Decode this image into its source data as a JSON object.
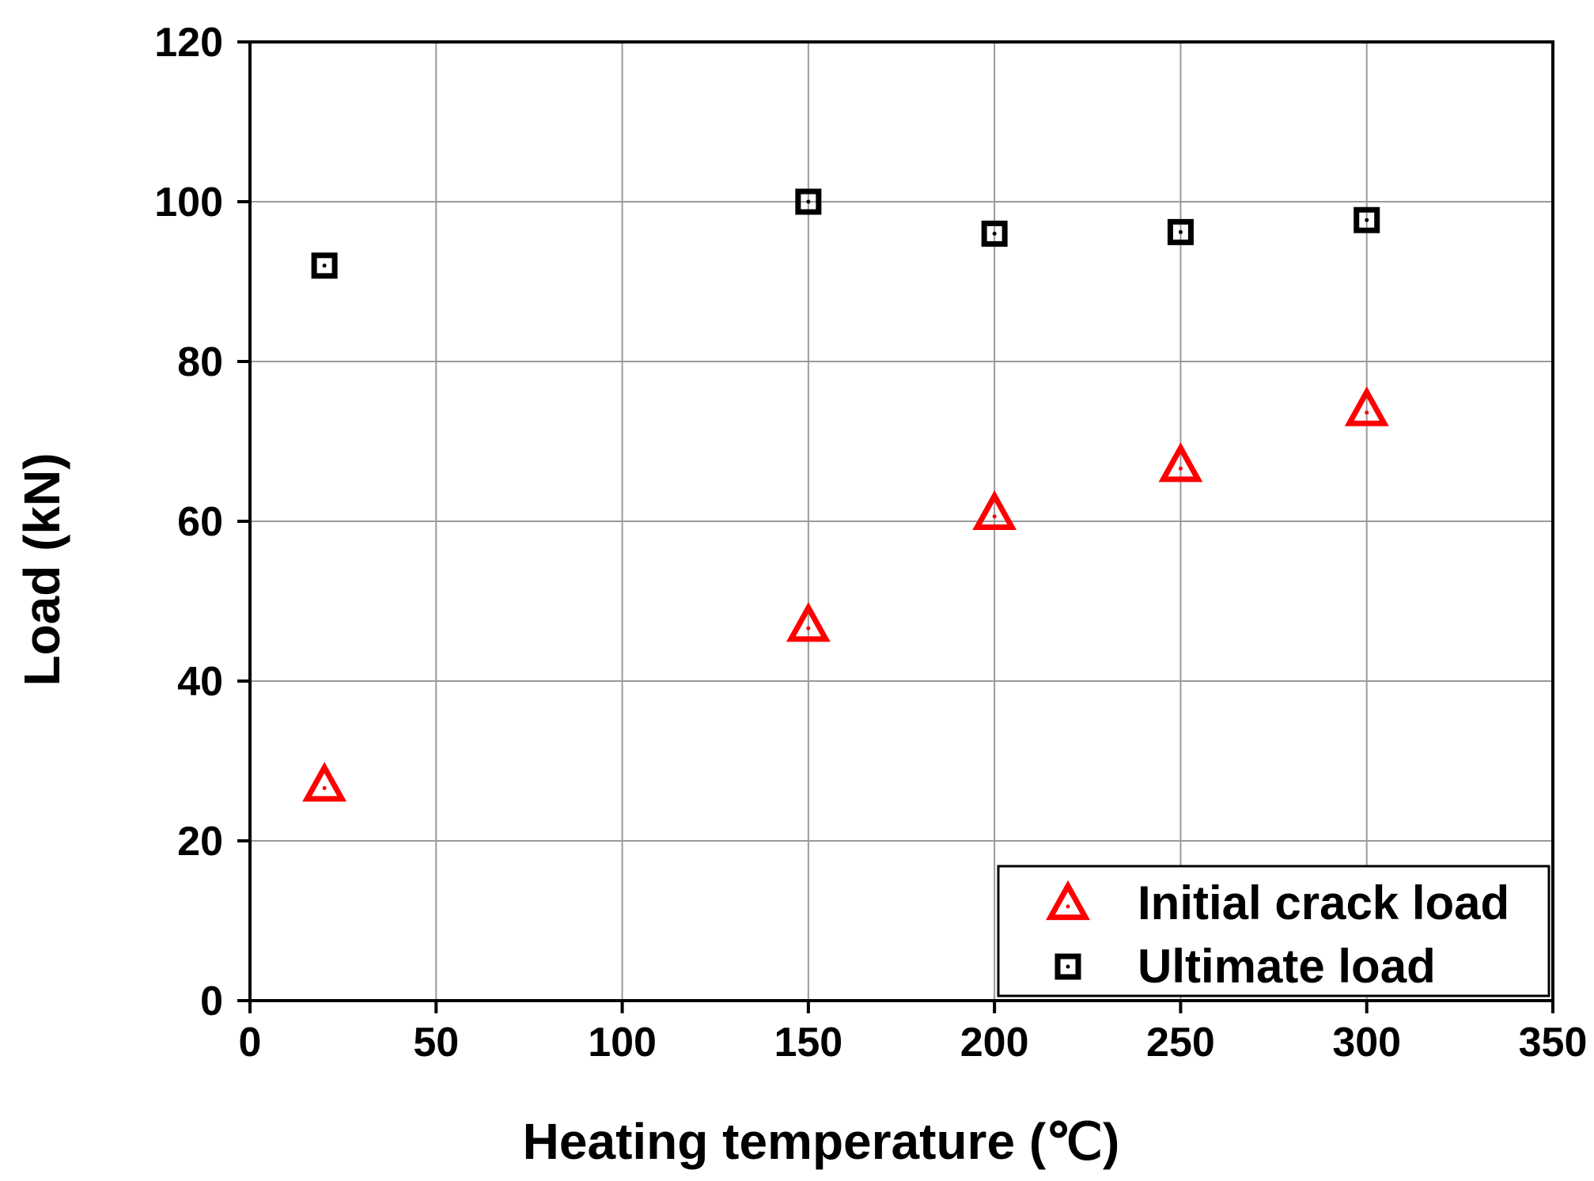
{
  "chart_data": {
    "type": "scatter",
    "title": "",
    "xlabel": "Heating temperature (℃)",
    "ylabel": "Load (kN)",
    "xlim": [
      0,
      350
    ],
    "ylim": [
      0,
      120
    ],
    "xticks": [
      "0",
      "50",
      "100",
      "150",
      "200",
      "250",
      "300",
      "350"
    ],
    "yticks": [
      "0",
      "20",
      "40",
      "60",
      "80",
      "100",
      "120"
    ],
    "grid": true,
    "legend_position": "bottom-right",
    "series": [
      {
        "name": "Initial crack load",
        "marker": "triangle",
        "color": "#ff0000",
        "x": [
          20,
          150,
          200,
          250,
          300
        ],
        "y": [
          27,
          47,
          61,
          67,
          74
        ]
      },
      {
        "name": "Ultimate load",
        "marker": "square",
        "color": "#000000",
        "x": [
          20,
          150,
          200,
          250,
          300
        ],
        "y": [
          92,
          100,
          96,
          96.2,
          97.7
        ]
      }
    ]
  }
}
